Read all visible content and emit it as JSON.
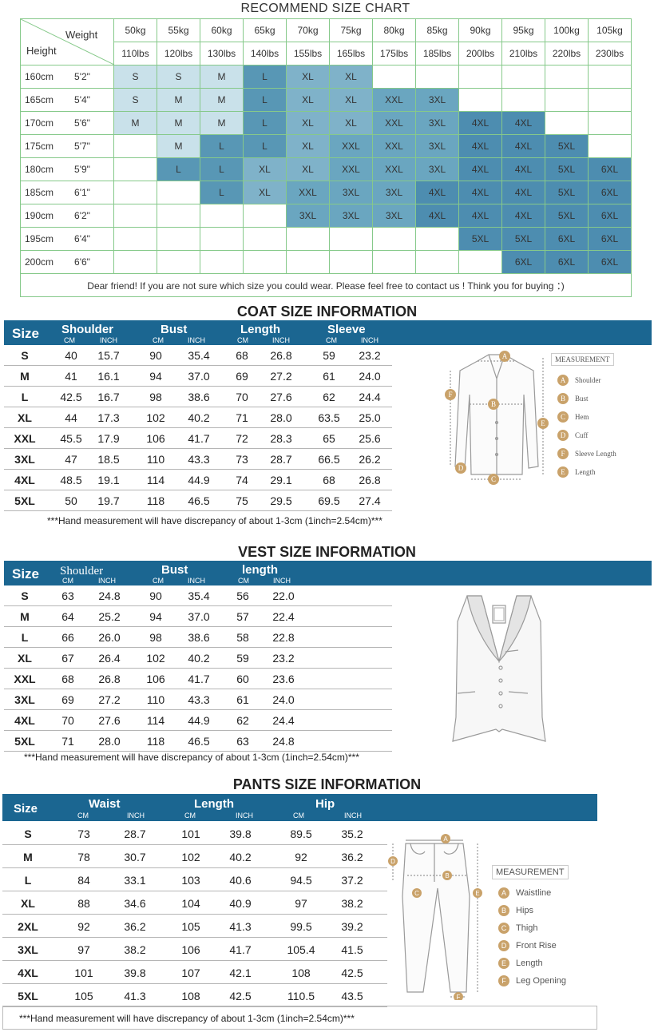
{
  "recommend": {
    "title": "RECOMMEND SIZE CHART",
    "corner_weight": "Weight",
    "corner_height": "Height",
    "weights_kg": [
      "50kg",
      "55kg",
      "60kg",
      "65kg",
      "70kg",
      "75kg",
      "80kg",
      "85kg",
      "90kg",
      "95kg",
      "100kg",
      "105kg"
    ],
    "weights_lbs": [
      "110lbs",
      "120lbs",
      "130lbs",
      "140lbs",
      "155lbs",
      "165lbs",
      "175lbs",
      "185lbs",
      "200lbs",
      "210lbs",
      "220lbs",
      "230lbs"
    ],
    "rows": [
      {
        "cm": "160cm",
        "in": "5'2\"",
        "sizes": [
          "S",
          "S",
          "M",
          "L",
          "XL",
          "XL",
          "",
          "",
          "",
          "",
          "",
          ""
        ]
      },
      {
        "cm": "165cm",
        "in": "5'4\"",
        "sizes": [
          "S",
          "M",
          "M",
          "L",
          "XL",
          "XL",
          "XXL",
          "3XL",
          "",
          "",
          "",
          ""
        ]
      },
      {
        "cm": "170cm",
        "in": "5'6\"",
        "sizes": [
          "M",
          "M",
          "M",
          "L",
          "XL",
          "XL",
          "XXL",
          "3XL",
          "4XL",
          "4XL",
          "",
          ""
        ]
      },
      {
        "cm": "175cm",
        "in": "5'7\"",
        "sizes": [
          "",
          "M",
          "L",
          "L",
          "XL",
          "XXL",
          "XXL",
          "3XL",
          "4XL",
          "4XL",
          "5XL",
          ""
        ]
      },
      {
        "cm": "180cm",
        "in": "5'9\"",
        "sizes": [
          "",
          "L",
          "L",
          "XL",
          "XL",
          "XXL",
          "XXL",
          "3XL",
          "4XL",
          "4XL",
          "5XL",
          "6XL"
        ]
      },
      {
        "cm": "185cm",
        "in": "6'1\"",
        "sizes": [
          "",
          "",
          "L",
          "XL",
          "XXL",
          "3XL",
          "3XL",
          "4XL",
          "4XL",
          "4XL",
          "5XL",
          "6XL"
        ]
      },
      {
        "cm": "190cm",
        "in": "6'2\"",
        "sizes": [
          "",
          "",
          "",
          "",
          "3XL",
          "3XL",
          "3XL",
          "4XL",
          "4XL",
          "4XL",
          "5XL",
          "6XL"
        ]
      },
      {
        "cm": "195cm",
        "in": "6'4\"",
        "sizes": [
          "",
          "",
          "",
          "",
          "",
          "",
          "",
          "",
          "5XL",
          "5XL",
          "6XL",
          "6XL"
        ]
      },
      {
        "cm": "200cm",
        "in": "6'6\"",
        "sizes": [
          "",
          "",
          "",
          "",
          "",
          "",
          "",
          "",
          "",
          "6XL",
          "6XL",
          "6XL"
        ]
      }
    ],
    "footer": "Dear friend! If you are not sure which size you could wear. Please feel free to contact us ! Think you for buying ：)"
  },
  "coat": {
    "title": "COAT SIZE INFORMATION",
    "size_header": "Size",
    "groups": [
      "Shoulder",
      "Bust",
      "Length",
      "Sleeve"
    ],
    "unit_cm": "CM",
    "unit_inch": "INCH",
    "rows": [
      [
        "S",
        "40",
        "15.7",
        "90",
        "35.4",
        "68",
        "26.8",
        "59",
        "23.2"
      ],
      [
        "M",
        "41",
        "16.1",
        "94",
        "37.0",
        "69",
        "27.2",
        "61",
        "24.0"
      ],
      [
        "L",
        "42.5",
        "16.7",
        "98",
        "38.6",
        "70",
        "27.6",
        "62",
        "24.4"
      ],
      [
        "XL",
        "44",
        "17.3",
        "102",
        "40.2",
        "71",
        "28.0",
        "63.5",
        "25.0"
      ],
      [
        "XXL",
        "45.5",
        "17.9",
        "106",
        "41.7",
        "72",
        "28.3",
        "65",
        "25.6"
      ],
      [
        "3XL",
        "47",
        "18.5",
        "110",
        "43.3",
        "73",
        "28.7",
        "66.5",
        "26.2"
      ],
      [
        "4XL",
        "48.5",
        "19.1",
        "114",
        "44.9",
        "74",
        "29.1",
        "68",
        "26.8"
      ],
      [
        "5XL",
        "50",
        "19.7",
        "118",
        "46.5",
        "75",
        "29.5",
        "69.5",
        "27.4"
      ]
    ],
    "note": "***Hand measurement will have discrepancy of about 1-3cm (1inch=2.54cm)***",
    "legend_title": "MEASUREMENT",
    "legend": [
      {
        "k": "A",
        "v": "Shoulder"
      },
      {
        "k": "B",
        "v": "Bust"
      },
      {
        "k": "C",
        "v": "Hem"
      },
      {
        "k": "D",
        "v": "Cuff"
      },
      {
        "k": "F",
        "v": "Sleeve Length"
      },
      {
        "k": "E",
        "v": "Length"
      }
    ]
  },
  "vest": {
    "title": "VEST SIZE INFORMATION",
    "size_header": "Size",
    "groups": [
      "Shoulder",
      "Bust",
      "length"
    ],
    "unit_cm": "CM",
    "unit_inch": "INCH",
    "rows": [
      [
        "S",
        "63",
        "24.8",
        "90",
        "35.4",
        "56",
        "22.0"
      ],
      [
        "M",
        "64",
        "25.2",
        "94",
        "37.0",
        "57",
        "22.4"
      ],
      [
        "L",
        "66",
        "26.0",
        "98",
        "38.6",
        "58",
        "22.8"
      ],
      [
        "XL",
        "67",
        "26.4",
        "102",
        "40.2",
        "59",
        "23.2"
      ],
      [
        "XXL",
        "68",
        "26.8",
        "106",
        "41.7",
        "60",
        "23.6"
      ],
      [
        "3XL",
        "69",
        "27.2",
        "110",
        "43.3",
        "61",
        "24.0"
      ],
      [
        "4XL",
        "70",
        "27.6",
        "114",
        "44.9",
        "62",
        "24.4"
      ],
      [
        "5XL",
        "71",
        "28.0",
        "118",
        "46.5",
        "63",
        "24.8"
      ]
    ],
    "note": "***Hand measurement will have discrepancy of about 1-3cm (1inch=2.54cm)***"
  },
  "pants": {
    "title": "PANTS SIZE INFORMATION",
    "size_header": "Size",
    "groups": [
      "Waist",
      "Length",
      "Hip"
    ],
    "unit_cm": "CM",
    "unit_inch": "INCH",
    "rows": [
      [
        "S",
        "73",
        "28.7",
        "101",
        "39.8",
        "89.5",
        "35.2"
      ],
      [
        "M",
        "78",
        "30.7",
        "102",
        "40.2",
        "92",
        "36.2"
      ],
      [
        "L",
        "84",
        "33.1",
        "103",
        "40.6",
        "94.5",
        "37.2"
      ],
      [
        "XL",
        "88",
        "34.6",
        "104",
        "40.9",
        "97",
        "38.2"
      ],
      [
        "2XL",
        "92",
        "36.2",
        "105",
        "41.3",
        "99.5",
        "39.2"
      ],
      [
        "3XL",
        "97",
        "38.2",
        "106",
        "41.7",
        "105.4",
        "41.5"
      ],
      [
        "4XL",
        "101",
        "39.8",
        "107",
        "42.1",
        "108",
        "42.5"
      ],
      [
        "5XL",
        "105",
        "41.3",
        "108",
        "42.5",
        "110.5",
        "43.5"
      ]
    ],
    "note": "***Hand measurement will have discrepancy of about 1-3cm (1inch=2.54cm)***",
    "legend_title": "MEASUREMENT",
    "legend": [
      {
        "k": "A",
        "v": "Waistline"
      },
      {
        "k": "B",
        "v": "Hips"
      },
      {
        "k": "C",
        "v": "Thigh"
      },
      {
        "k": "D",
        "v": "Front Rise"
      },
      {
        "k": "E",
        "v": "Length"
      },
      {
        "k": "F",
        "v": "Leg Opening"
      }
    ]
  },
  "colors": {
    "band": "#1b6691",
    "grid_border": "#86c98a",
    "size_light": "#c9e1ea",
    "size_mid": "#7fb2c9",
    "size_dark": "#4d8db0",
    "letter_badge": "#c9a26a"
  }
}
